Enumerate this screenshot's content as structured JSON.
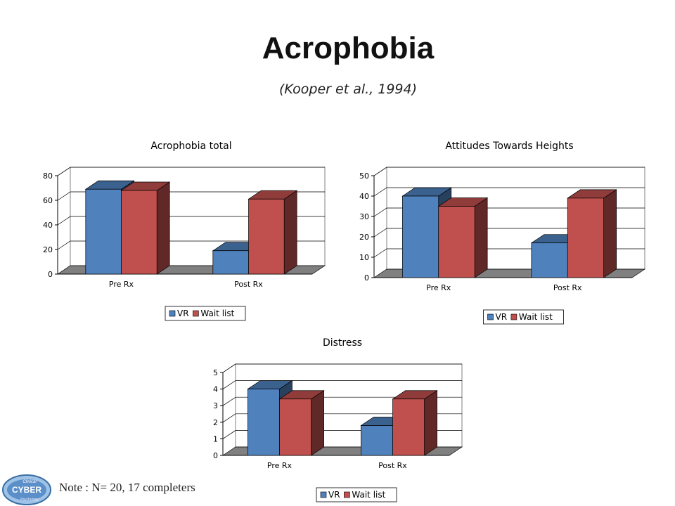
{
  "slide": {
    "title": "Acrophobia",
    "subtitle": "(Kooper et al., 1994)",
    "note": "Note : N= 20, 17 completers",
    "logo_text": [
      "Clinical",
      "CYBER",
      "Psychology"
    ]
  },
  "colors": {
    "vr": "#4F81BD",
    "wait_list": "#C0504D",
    "floor": "#808080"
  },
  "chart_data": [
    {
      "type": "bar",
      "title": "Acrophobia total",
      "categories": [
        "Pre Rx",
        "Post Rx"
      ],
      "series": [
        {
          "name": "VR",
          "values": [
            69,
            19
          ]
        },
        {
          "name": "Wait list",
          "values": [
            68,
            61
          ]
        }
      ],
      "ylim": [
        0,
        80
      ],
      "yticks": [
        0,
        20,
        40,
        60,
        80
      ],
      "grid": true,
      "legend": "bottom"
    },
    {
      "type": "bar",
      "title": "Attitudes Towards Heights",
      "categories": [
        "Pre Rx",
        "Post Rx"
      ],
      "series": [
        {
          "name": "VR",
          "values": [
            40,
            17
          ]
        },
        {
          "name": "Wait list",
          "values": [
            35,
            39
          ]
        }
      ],
      "ylim": [
        0,
        50
      ],
      "yticks": [
        0,
        10,
        20,
        30,
        40,
        50
      ],
      "grid": true,
      "legend": "bottom"
    },
    {
      "type": "bar",
      "title": "Distress",
      "categories": [
        "Pre Rx",
        "Post Rx"
      ],
      "series": [
        {
          "name": "VR",
          "values": [
            4,
            1.8
          ]
        },
        {
          "name": "Wait list",
          "values": [
            3.4,
            3.4
          ]
        }
      ],
      "ylim": [
        0,
        5
      ],
      "yticks": [
        0,
        1,
        2,
        3,
        4,
        5
      ],
      "grid": true,
      "legend": "bottom"
    }
  ]
}
